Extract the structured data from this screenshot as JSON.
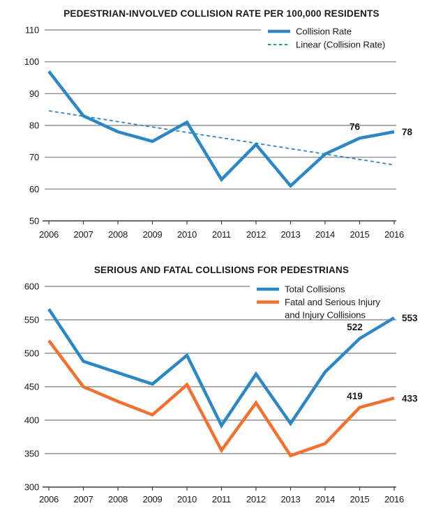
{
  "colors": {
    "blue": "#2C87C6",
    "orange": "#F4702F",
    "grid": "#7B7B7B",
    "axis": "#3D3D3D",
    "text": "#1A1A1A"
  },
  "chart_data": [
    {
      "type": "line",
      "title": "PEDESTRIAN-INVOLVED COLLISION RATE PER 100,000 RESIDENTS",
      "categories": [
        "2006",
        "2007",
        "2008",
        "2009",
        "2010",
        "2011",
        "2012",
        "2013",
        "2014",
        "2015",
        "2016"
      ],
      "ylim": [
        50,
        110
      ],
      "yticks": [
        110,
        100,
        90,
        80,
        70,
        60,
        50
      ],
      "grid": true,
      "legend_position": "top-right",
      "series": [
        {
          "name": "Collision Rate",
          "line_style": "solid",
          "color": "#2C87C6",
          "values": [
            97,
            83,
            78,
            75,
            81,
            63,
            74,
            61,
            71,
            76,
            78
          ]
        },
        {
          "name": "Linear (Collision Rate)",
          "line_style": "dashed",
          "color": "#2C87C6",
          "values": [
            84.6,
            82.9,
            81.2,
            79.5,
            77.8,
            76.1,
            74.4,
            72.7,
            71.0,
            69.3,
            67.6
          ]
        }
      ],
      "annotations": [
        {
          "series": 0,
          "category": "2015",
          "text": "76",
          "placement": "above"
        },
        {
          "series": 0,
          "category": "2016",
          "text": "78",
          "placement": "right"
        }
      ],
      "legend": [
        {
          "label_lines": [
            "Collision Rate"
          ],
          "swatch": "solid",
          "color": "#2C87C6"
        },
        {
          "label_lines": [
            "Linear (Collision Rate)"
          ],
          "swatch": "dashed",
          "color": "#2C87C6"
        }
      ]
    },
    {
      "type": "line",
      "title": "SERIOUS AND FATAL COLLISIONS FOR PEDESTRIANS",
      "categories": [
        "2006",
        "2007",
        "2008",
        "2009",
        "2010",
        "2011",
        "2012",
        "2013",
        "2014",
        "2015",
        "2016"
      ],
      "ylim": [
        300,
        600
      ],
      "yticks": [
        600,
        550,
        500,
        450,
        400,
        350,
        300
      ],
      "grid": true,
      "legend_position": "top-right",
      "series": [
        {
          "name": "Total Collisions",
          "line_style": "solid",
          "color": "#2C87C6",
          "values": [
            566,
            488,
            471,
            454,
            497,
            392,
            469,
            395,
            472,
            522,
            553
          ]
        },
        {
          "name": "Fatal and Serious Injury and Injury Collisions",
          "line_style": "solid",
          "color": "#F4702F",
          "values": [
            519,
            450,
            428,
            408,
            453,
            355,
            426,
            347,
            365,
            419,
            433
          ]
        }
      ],
      "annotations": [
        {
          "series": 0,
          "category": "2015",
          "text": "522",
          "placement": "above"
        },
        {
          "series": 0,
          "category": "2016",
          "text": "553",
          "placement": "right"
        },
        {
          "series": 1,
          "category": "2015",
          "text": "419",
          "placement": "above"
        },
        {
          "series": 1,
          "category": "2016",
          "text": "433",
          "placement": "right"
        }
      ],
      "legend": [
        {
          "label_lines": [
            "Total Collisions"
          ],
          "swatch": "solid",
          "color": "#2C87C6"
        },
        {
          "label_lines": [
            "Fatal and Serious Injury",
            "and Injury Collisions"
          ],
          "swatch": "solid",
          "color": "#F4702F"
        }
      ]
    }
  ]
}
